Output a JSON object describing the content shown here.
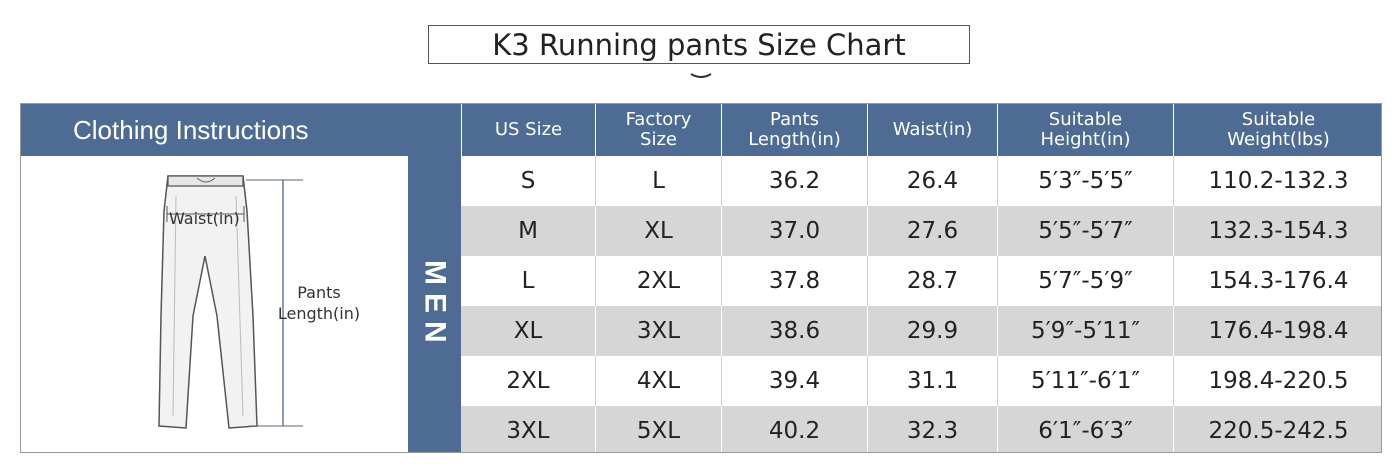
{
  "title": "K3 Running pants Size Chart",
  "colors": {
    "header_bg": "#4e6b94",
    "row_shade": "#d6d6d6",
    "text": "#222222"
  },
  "header": {
    "instructions": "Clothing Instructions",
    "us_size": "US Size",
    "factory_size": "Factory\nSize",
    "pants_length": "Pants\nLength(in)",
    "waist": "Waist(in)",
    "height": "Suitable\nHeight(in)",
    "weight": "Suitable\nWeight(lbs)"
  },
  "diagram": {
    "waist_label": "Waist(in)",
    "length_label_line1": "Pants",
    "length_label_line2": "Length(in)"
  },
  "group_label": "MEN",
  "chart_data": {
    "type": "table",
    "title": "K3 Running pants Size Chart",
    "group": "MEN",
    "columns": [
      "US Size",
      "Factory Size",
      "Pants Length(in)",
      "Waist(in)",
      "Suitable Height(in)",
      "Suitable Weight(lbs)"
    ],
    "rows": [
      [
        "S",
        "L",
        "36.2",
        "26.4",
        "5′3″-5′5″",
        "110.2-132.3"
      ],
      [
        "M",
        "XL",
        "37.0",
        "27.6",
        "5′5″-5′7″",
        "132.3-154.3"
      ],
      [
        "L",
        "2XL",
        "37.8",
        "28.7",
        "5′7″-5′9″",
        "154.3-176.4"
      ],
      [
        "XL",
        "3XL",
        "38.6",
        "29.9",
        "5′9″-5′11″",
        "176.4-198.4"
      ],
      [
        "2XL",
        "4XL",
        "39.4",
        "31.1",
        "5′11″-6′1″",
        "198.4-220.5"
      ],
      [
        "3XL",
        "5XL",
        "40.2",
        "32.3",
        "6′1″-6′3″",
        "220.5-242.5"
      ]
    ]
  }
}
